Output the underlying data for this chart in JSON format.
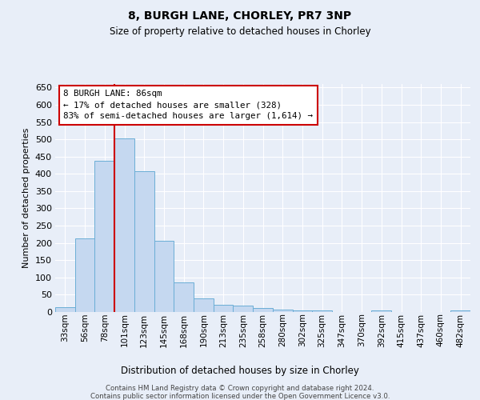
{
  "title": "8, BURGH LANE, CHORLEY, PR7 3NP",
  "subtitle": "Size of property relative to detached houses in Chorley",
  "xlabel": "Distribution of detached houses by size in Chorley",
  "ylabel": "Number of detached properties",
  "bar_values": [
    15,
    212,
    437,
    502,
    407,
    207,
    85,
    39,
    22,
    18,
    12,
    6,
    5,
    4,
    0,
    0,
    5,
    0,
    0,
    0,
    5
  ],
  "categories": [
    "33sqm",
    "56sqm",
    "78sqm",
    "101sqm",
    "123sqm",
    "145sqm",
    "168sqm",
    "190sqm",
    "213sqm",
    "235sqm",
    "258sqm",
    "280sqm",
    "302sqm",
    "325sqm",
    "347sqm",
    "370sqm",
    "392sqm",
    "415sqm",
    "437sqm",
    "460sqm",
    "482sqm"
  ],
  "bar_color": "#c5d8f0",
  "bar_edge_color": "#6baed6",
  "vline_color": "#cc0000",
  "vline_x": 2.5,
  "annotation_text": "8 BURGH LANE: 86sqm\n← 17% of detached houses are smaller (328)\n83% of semi-detached houses are larger (1,614) →",
  "annotation_box_color": "white",
  "annotation_border_color": "#cc0000",
  "ylim_max": 660,
  "yticks": [
    0,
    50,
    100,
    150,
    200,
    250,
    300,
    350,
    400,
    450,
    500,
    550,
    600,
    650
  ],
  "footer_line1": "Contains HM Land Registry data © Crown copyright and database right 2024.",
  "footer_line2": "Contains public sector information licensed under the Open Government Licence v3.0.",
  "bg_color": "#e8eef8",
  "grid_color": "white"
}
